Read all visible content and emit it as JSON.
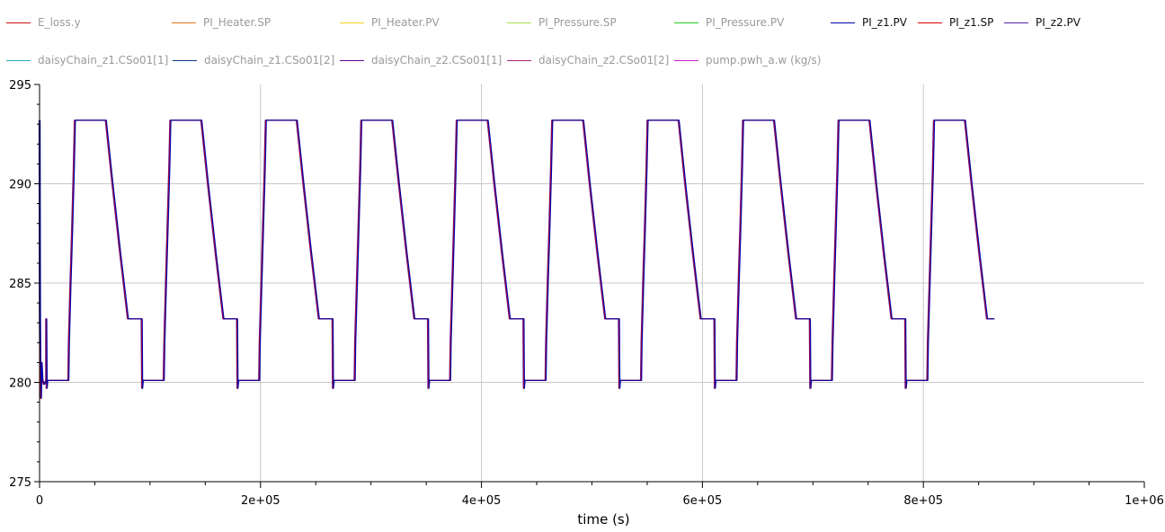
{
  "legend": [
    {
      "name": "E_loss.y",
      "color": "#cc1111",
      "dim": true
    },
    {
      "name": "PI_Heater.SP",
      "color": "#e8771b",
      "dim": true
    },
    {
      "name": "PI_Heater.PV",
      "color": "#f2d21c",
      "dim": true
    },
    {
      "name": "PI_Pressure.SP",
      "color": "#a8e04b",
      "dim": true
    },
    {
      "name": "PI_Pressure.PV",
      "color": "#22cc22",
      "dim": true
    },
    {
      "name": "PI_z1.PV",
      "color": "#0000aa",
      "dim": false
    },
    {
      "name": "PI_z1.SP",
      "color": "#dd0000",
      "dim": false
    },
    {
      "name": "PI_z2.PV",
      "color": "#5522aa",
      "dim": false
    },
    {
      "name": "daisyChain_z1.CSo01[1]",
      "color": "#22aabb",
      "dim": true
    },
    {
      "name": "daisyChain_z1.CSo01[2]",
      "color": "#113388",
      "dim": true
    },
    {
      "name": "daisyChain_z2.CSo01[1]",
      "color": "#660099",
      "dim": true
    },
    {
      "name": "daisyChain_z2.CSo01[2]",
      "color": "#aa2277",
      "dim": true
    },
    {
      "name": "pump.pwh_a.w (kg/s)",
      "color": "#cc22cc",
      "dim": true
    }
  ],
  "chart_data": {
    "type": "line",
    "xlabel": "time (s)",
    "ylabel": "",
    "xlim": [
      0,
      1000000
    ],
    "ylim": [
      275,
      295
    ],
    "x_ticks": [
      0,
      200000,
      400000,
      600000,
      800000,
      1000000
    ],
    "x_tick_labels": [
      "0",
      "2e+05",
      "4e+05",
      "6e+05",
      "8e+05",
      "1e+06"
    ],
    "y_ticks": [
      275,
      280,
      285,
      290,
      295
    ],
    "y_tick_labels": [
      "275",
      "280",
      "285",
      "290",
      "295"
    ],
    "grid": true,
    "legend_position": "top",
    "cycle": {
      "period": 86400,
      "count": 10,
      "x_end": 864000,
      "points_per_cycle": [
        [
          0,
          283.2
        ],
        [
          6000,
          283.2
        ],
        [
          6400,
          279.7
        ],
        [
          7000,
          280.1
        ],
        [
          26000,
          280.1
        ],
        [
          26500,
          282.0
        ],
        [
          28000,
          285.0
        ],
        [
          29500,
          287.8
        ],
        [
          31000,
          290.8
        ],
        [
          32000,
          293.2
        ],
        [
          60000,
          293.2
        ],
        [
          66000,
          290.0
        ],
        [
          73000,
          286.5
        ],
        [
          80000,
          283.2
        ],
        [
          86400,
          283.2
        ]
      ]
    },
    "startup_points": [
      [
        0,
        293.2
      ],
      [
        300,
        283.5
      ],
      [
        700,
        280.5
      ],
      [
        1200,
        279.2
      ],
      [
        1800,
        281.0
      ],
      [
        2600,
        280.1
      ],
      [
        4000,
        279.9
      ],
      [
        6000,
        280.1
      ]
    ],
    "series": [
      {
        "name": "PI_z1.PV",
        "color": "#0000aa"
      },
      {
        "name": "PI_z1.SP",
        "color": "#dd0000"
      },
      {
        "name": "PI_z2.PV",
        "color": "#5522aa"
      }
    ]
  }
}
